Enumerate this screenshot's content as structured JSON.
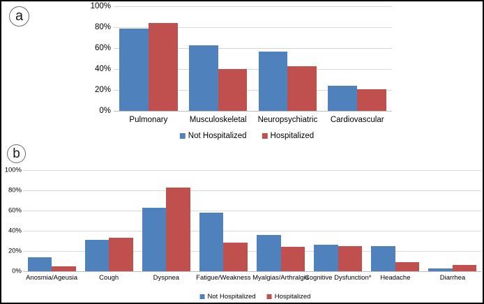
{
  "figure": {
    "kind": "two-panel grouped bar chart",
    "unit": "%",
    "colors": {
      "not_hospitalized_blue": "#4f81bd",
      "hospitalized_red": "#c0504d",
      "gridline": "#d9d9d9",
      "axis_line": "#bdbdbd",
      "frame_border": "#000000"
    }
  },
  "chart_data": [
    {
      "panel": "a",
      "type": "bar",
      "title": "",
      "xlabel": "",
      "ylabel": "",
      "categories": [
        "Pulmonary",
        "Musculoskeletal",
        "Neuropsychiatric",
        "Cardiovascular"
      ],
      "series": [
        {
          "name": "Not Hospitalized",
          "color": "#4f81bd",
          "values": [
            79,
            63,
            57,
            24
          ]
        },
        {
          "name": "Hospitalized",
          "color": "#c0504d",
          "values": [
            84,
            40,
            43,
            21
          ]
        }
      ],
      "ylim": [
        0,
        100
      ],
      "ytick_values": [
        0,
        20,
        40,
        60,
        80,
        100
      ],
      "ytick_labels": [
        "0%",
        "20%",
        "40%",
        "60%",
        "80%",
        "100%"
      ],
      "grid": true,
      "legend_position": "bottom"
    },
    {
      "panel": "b",
      "type": "bar",
      "title": "",
      "xlabel": "",
      "ylabel": "",
      "categories": [
        "Anosmia/Ageusia",
        "Cough",
        "Dyspnea",
        "Fatigue/Weakness",
        "Myalgias/Arthralgia",
        "Cognitive Dysfunction*",
        "Headache",
        "Diarrhea"
      ],
      "series": [
        {
          "name": "Not Hospitalized",
          "color": "#4f81bd",
          "values": [
            14,
            31,
            63,
            58,
            36,
            26,
            25,
            3
          ]
        },
        {
          "name": "Hospitalized",
          "color": "#c0504d",
          "values": [
            5,
            33,
            83,
            28,
            24,
            25,
            9,
            6
          ]
        }
      ],
      "ylim": [
        0,
        100
      ],
      "ytick_values": [
        0,
        20,
        40,
        60,
        80,
        100
      ],
      "ytick_labels": [
        "0%",
        "20%",
        "40%",
        "60%",
        "80%",
        "100%"
      ],
      "grid": true,
      "legend_position": "bottom"
    }
  ]
}
